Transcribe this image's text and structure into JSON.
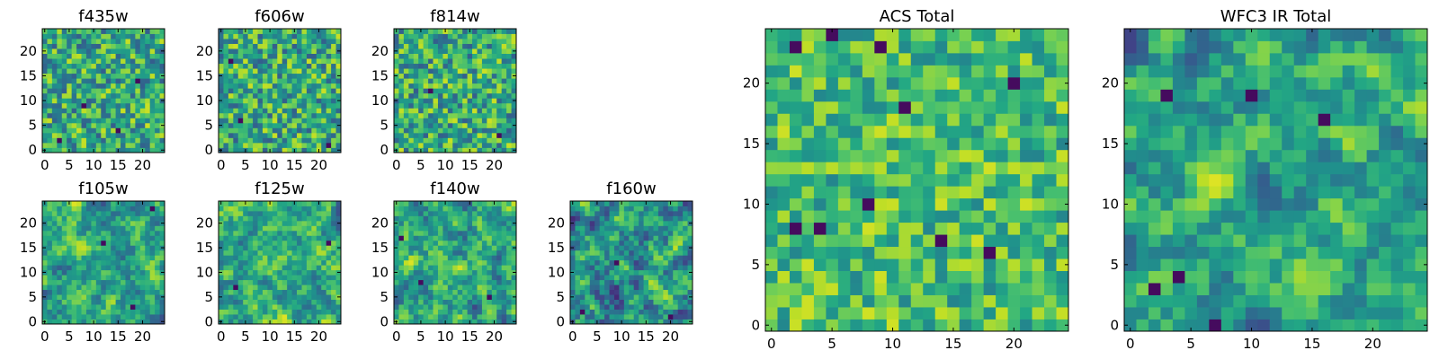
{
  "chart_data": [
    {
      "type": "heatmap",
      "title": "f435w",
      "size": [
        25,
        25
      ],
      "colormap": "viridis",
      "ticks": [
        0,
        5,
        10,
        15,
        20
      ],
      "seed": 11,
      "mode": "noise",
      "range": [
        0.3,
        0.92
      ],
      "dark": [
        [
          3,
          2
        ],
        [
          15,
          4
        ],
        [
          19,
          14
        ],
        [
          8,
          9
        ]
      ]
    },
    {
      "type": "heatmap",
      "title": "f606w",
      "size": [
        25,
        25
      ],
      "colormap": "viridis",
      "ticks": [
        0,
        5,
        10,
        15,
        20
      ],
      "seed": 23,
      "mode": "noise",
      "range": [
        0.3,
        0.92
      ],
      "dark": [
        [
          4,
          6
        ],
        [
          22,
          1
        ],
        [
          2,
          18
        ]
      ]
    },
    {
      "type": "heatmap",
      "title": "f814w",
      "size": [
        25,
        25
      ],
      "colormap": "viridis",
      "ticks": [
        0,
        5,
        10,
        15,
        20
      ],
      "seed": 37,
      "mode": "noise",
      "range": [
        0.3,
        0.92
      ],
      "dark": [
        [
          7,
          12
        ],
        [
          21,
          3
        ]
      ]
    },
    {
      "type": "heatmap",
      "title": "f105w",
      "size": [
        25,
        25
      ],
      "colormap": "viridis",
      "ticks": [
        0,
        5,
        10,
        15,
        20
      ],
      "seed": 41,
      "mode": "smooth",
      "range": [
        0.25,
        0.95
      ],
      "dark": [
        [
          12,
          16
        ],
        [
          22,
          23
        ],
        [
          18,
          3
        ]
      ]
    },
    {
      "type": "heatmap",
      "title": "f125w",
      "size": [
        25,
        25
      ],
      "colormap": "viridis",
      "ticks": [
        0,
        5,
        10,
        15,
        20
      ],
      "seed": 53,
      "mode": "smooth",
      "range": [
        0.25,
        0.95
      ],
      "dark": [
        [
          22,
          16
        ],
        [
          3,
          7
        ]
      ]
    },
    {
      "type": "heatmap",
      "title": "f140w",
      "size": [
        25,
        25
      ],
      "colormap": "viridis",
      "ticks": [
        0,
        5,
        10,
        15,
        20
      ],
      "seed": 67,
      "mode": "smooth",
      "range": [
        0.22,
        0.95
      ],
      "dark": [
        [
          1,
          17
        ],
        [
          5,
          8
        ],
        [
          19,
          5
        ]
      ]
    },
    {
      "type": "heatmap",
      "title": "f160w",
      "size": [
        25,
        25
      ],
      "colormap": "viridis",
      "ticks": [
        0,
        5,
        10,
        15,
        20
      ],
      "seed": 79,
      "mode": "smooth",
      "range": [
        0.12,
        0.9
      ],
      "dark": [
        [
          2,
          2
        ],
        [
          20,
          1
        ],
        [
          9,
          12
        ]
      ]
    },
    {
      "type": "heatmap",
      "title": "ACS Total",
      "size": [
        25,
        25
      ],
      "colormap": "viridis",
      "ticks": [
        0,
        5,
        10,
        15,
        20
      ],
      "seed": 91,
      "mode": "noise",
      "range": [
        0.45,
        0.93
      ],
      "dark": [
        [
          2,
          23
        ],
        [
          5,
          24
        ],
        [
          9,
          23
        ],
        [
          20,
          20
        ],
        [
          8,
          10
        ],
        [
          2,
          8
        ],
        [
          4,
          8
        ],
        [
          14,
          7
        ],
        [
          18,
          6
        ],
        [
          11,
          18
        ]
      ]
    },
    {
      "type": "heatmap",
      "title": "WFC3 IR Total",
      "size": [
        25,
        25
      ],
      "colormap": "viridis",
      "ticks": [
        0,
        5,
        10,
        15,
        20
      ],
      "seed": 103,
      "mode": "smooth",
      "range": [
        0.2,
        0.95
      ],
      "dark": [
        [
          3,
          19
        ],
        [
          10,
          19
        ],
        [
          16,
          17
        ],
        [
          7,
          0
        ],
        [
          4,
          4
        ],
        [
          2,
          3
        ]
      ]
    }
  ]
}
